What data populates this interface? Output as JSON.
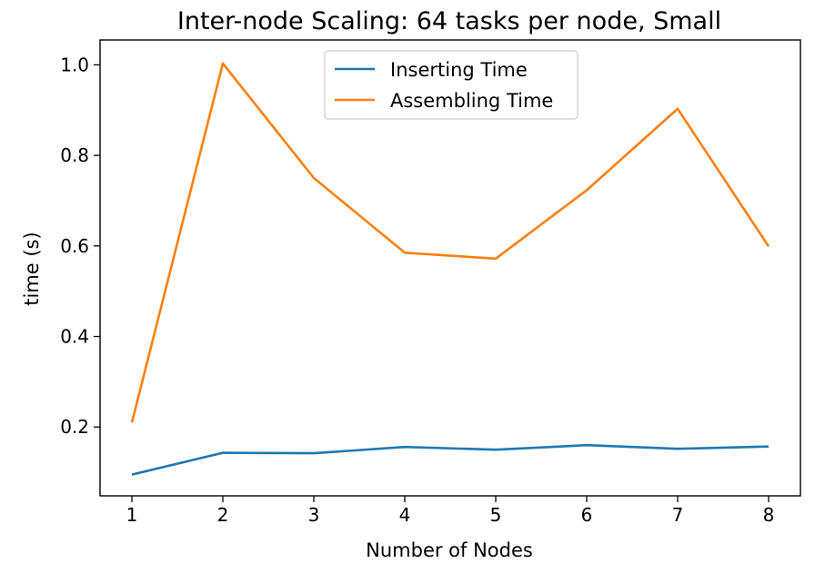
{
  "chart_data": {
    "type": "line",
    "title": "Inter-node Scaling: 64 tasks per node, Small",
    "xlabel": "Number of Nodes",
    "ylabel": "time (s)",
    "x": [
      1,
      2,
      3,
      4,
      5,
      6,
      7,
      8
    ],
    "xticks": [
      "1",
      "2",
      "3",
      "4",
      "5",
      "6",
      "7",
      "8"
    ],
    "yticks": [
      "0.2",
      "0.4",
      "0.6",
      "0.8",
      "1.0"
    ],
    "xlim": [
      0.65,
      8.35
    ],
    "ylim": [
      0.048,
      1.055
    ],
    "grid": false,
    "legend_position": "upper center",
    "series": [
      {
        "name": "Inserting Time",
        "color": "#1f77b4",
        "values": [
          0.095,
          0.143,
          0.142,
          0.156,
          0.15,
          0.16,
          0.152,
          0.157
        ]
      },
      {
        "name": "Assembling Time",
        "color": "#ff7f0e",
        "values": [
          0.21,
          1.003,
          0.75,
          0.585,
          0.572,
          0.723,
          0.903,
          0.599
        ]
      }
    ]
  }
}
